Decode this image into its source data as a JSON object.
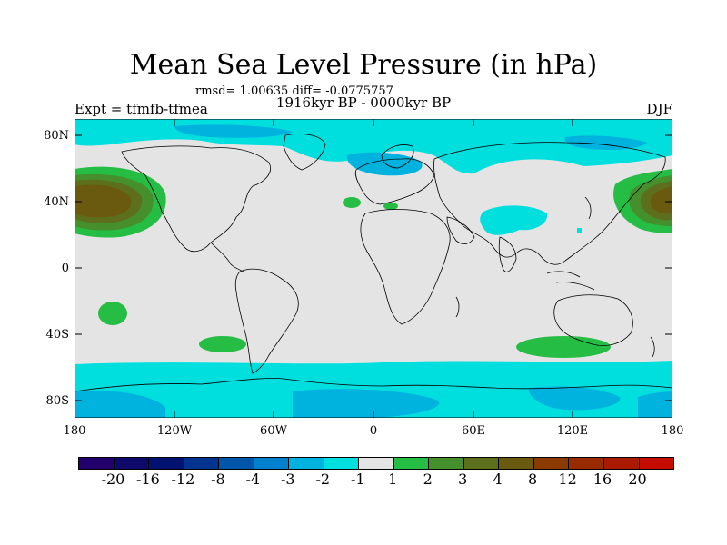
{
  "title": "Mean Sea Level Pressure (in hPa)",
  "stats": "rmsd= 1.00635 diff= -0.0775757",
  "period": "1916kyr BP - 0000kyr BP",
  "experiment": "Expt = tfmfb-tfmea",
  "season": "DJF",
  "y_axis_labels": [
    "80N",
    "40N",
    "0",
    "40S",
    "80S"
  ],
  "x_axis_labels": [
    "180",
    "120W",
    "60W",
    "0",
    "60E",
    "120E",
    "180"
  ],
  "colorbar": {
    "colors": [
      "#23006b",
      "#0e0a6c",
      "#00126f",
      "#003490",
      "#0057a9",
      "#0080cd",
      "#00b2de",
      "#00dede",
      "#e4e4e4",
      "#25bd44",
      "#45902c",
      "#5d6f1c",
      "#6a5a0f",
      "#8b3a00",
      "#9a2a00",
      "#aa1a00",
      "#c60c00"
    ],
    "labels": [
      "-20",
      "-16",
      "-12",
      "-8",
      "-4",
      "-3",
      "-2",
      "-1",
      "1",
      "2",
      "3",
      "4",
      "8",
      "12",
      "16",
      "20"
    ]
  },
  "colors": {
    "background": "#e4e4e4",
    "neg1": "#00dede",
    "neg2": "#00b2de",
    "pos2": "#25bd44",
    "pos3": "#45902c",
    "pos4": "#5d6f1c",
    "pos8": "#6a5a0f"
  }
}
